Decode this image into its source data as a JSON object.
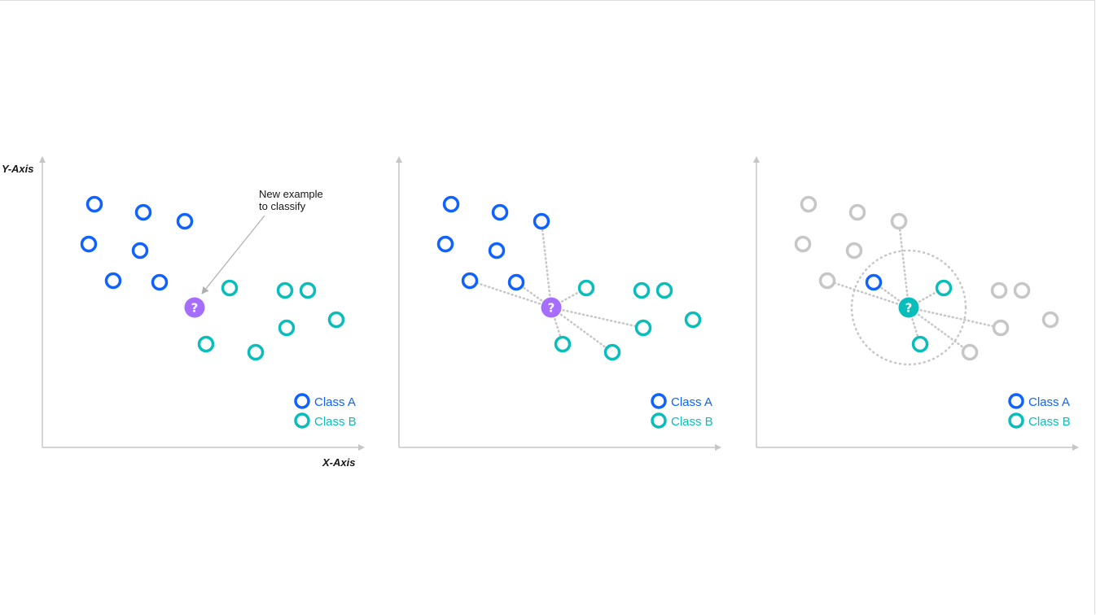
{
  "labels": {
    "y_axis": "Y-Axis",
    "x_axis": "X-Axis",
    "annotation_line1": "New example",
    "annotation_line2": "to classify",
    "question_mark": "?"
  },
  "legend": {
    "class_a": "Class A",
    "class_b": "Class B"
  },
  "colors": {
    "class_a": "#0f62fe",
    "class_b": "#08bdba",
    "unknown": "#a56eff",
    "inactive": "#c6c6c6",
    "axis": "#c6c6c6",
    "connector": "#c6c6c6"
  },
  "panels": [
    {
      "state": "unclassified",
      "query_class": "unknown",
      "show_annotation": true,
      "show_axis_labels": true
    },
    {
      "state": "distances",
      "query_class": "unknown",
      "show_annotation": false,
      "show_axis_labels": false
    },
    {
      "state": "classified_k_nearest",
      "query_class": "class_b",
      "show_annotation": false,
      "show_axis_labels": false
    }
  ]
}
